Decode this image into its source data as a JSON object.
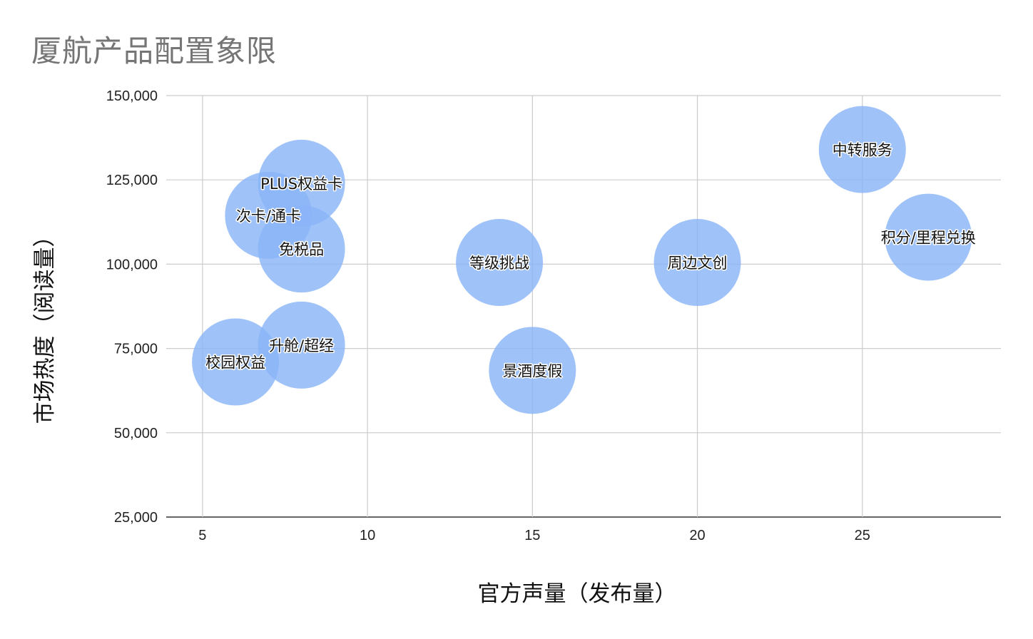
{
  "chart_data": {
    "type": "bubble",
    "title": "厦航产品配置象限",
    "xlabel": "官方声量（发布量）",
    "ylabel": "市场热度（阅读量）",
    "xlim": [
      3.9,
      29.2
    ],
    "ylim": [
      25000,
      150000
    ],
    "xticks": [
      5,
      10,
      15,
      20,
      25
    ],
    "yticks": [
      25000,
      50000,
      75000,
      100000,
      125000,
      150000
    ],
    "ytick_labels": [
      "25,000",
      "50,000",
      "75,000",
      "100,000",
      "125,000",
      "150,000"
    ],
    "grid": true,
    "bubble_color": "#8ab4f8",
    "points": [
      {
        "label": "PLUS权益卡",
        "x": 8,
        "y": 124000
      },
      {
        "label": "次卡/通卡",
        "x": 7,
        "y": 114500
      },
      {
        "label": "免税品",
        "x": 8,
        "y": 104500
      },
      {
        "label": "校园权益",
        "x": 6,
        "y": 71000
      },
      {
        "label": "升舱/超经",
        "x": 8,
        "y": 76000
      },
      {
        "label": "等级挑战",
        "x": 14,
        "y": 100500
      },
      {
        "label": "景酒度假",
        "x": 15,
        "y": 68500
      },
      {
        "label": "周边文创",
        "x": 20,
        "y": 100500
      },
      {
        "label": "中转服务",
        "x": 25,
        "y": 134000
      },
      {
        "label": "积分/里程兑换",
        "x": 27,
        "y": 108000
      }
    ]
  }
}
